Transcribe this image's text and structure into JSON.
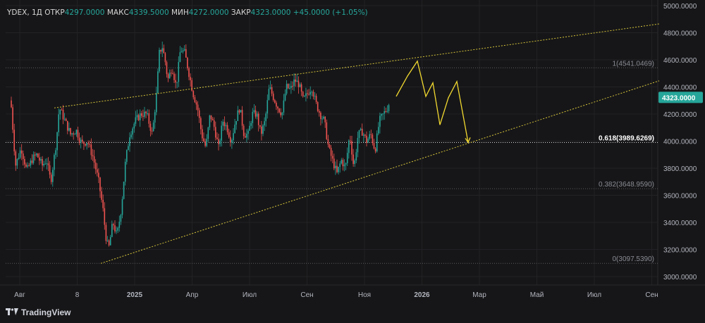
{
  "header": {
    "symbol": "YDEX, 1Д",
    "open_label": "ОТКР",
    "open_value": "4297.0000",
    "high_label": "МАКС",
    "high_value": "4339.5000",
    "low_label": "МИН",
    "low_value": "4272.0000",
    "close_label": "ЗАКР",
    "close_value": "4323.0000",
    "change": "+45.0000 (+1.05%)"
  },
  "brand": "TradingView",
  "colors": {
    "up": "#26a69a",
    "down": "#ef5350",
    "trend": "#d4c23a",
    "forecast": "#f2d930",
    "background": "#161618",
    "grid": "#222226",
    "axis_text": "#b2b5be"
  },
  "chart_data": {
    "type": "candlestick",
    "ylim": [
      3000,
      5000
    ],
    "yticks": [
      "3000.0000",
      "3200.0000",
      "3400.0000",
      "3600.0000",
      "3800.0000",
      "4000.0000",
      "4200.0000",
      "4400.0000",
      "4600.0000",
      "4800.0000",
      "5000.0000"
    ],
    "xticks": [
      "Авг",
      "8",
      "2025",
      "Апр",
      "Июл",
      "Сен",
      "Ноя",
      "2026",
      "Мар",
      "Май",
      "Июл",
      "Сен"
    ],
    "last_price_label": "4323.0000",
    "series_path": [
      [
        0,
        4300
      ],
      [
        4,
        4250
      ],
      [
        10,
        3820
      ],
      [
        18,
        3950
      ],
      [
        26,
        3780
      ],
      [
        34,
        3870
      ],
      [
        40,
        3900
      ],
      [
        48,
        3820
      ],
      [
        54,
        3860
      ],
      [
        60,
        3700
      ],
      [
        68,
        4000
      ],
      [
        72,
        4250
      ],
      [
        80,
        4150
      ],
      [
        88,
        4050
      ],
      [
        96,
        4080
      ],
      [
        104,
        3980
      ],
      [
        112,
        4000
      ],
      [
        120,
        3880
      ],
      [
        128,
        3700
      ],
      [
        134,
        3500
      ],
      [
        138,
        3300
      ],
      [
        142,
        3200
      ],
      [
        148,
        3400
      ],
      [
        154,
        3300
      ],
      [
        160,
        3500
      ],
      [
        166,
        3850
      ],
      [
        172,
        4050
      ],
      [
        180,
        4150
      ],
      [
        188,
        4200
      ],
      [
        196,
        4200
      ],
      [
        204,
        4050
      ],
      [
        210,
        4350
      ],
      [
        214,
        4650
      ],
      [
        218,
        4700
      ],
      [
        222,
        4600
      ],
      [
        226,
        4450
      ],
      [
        232,
        4550
      ],
      [
        238,
        4400
      ],
      [
        244,
        4680
      ],
      [
        250,
        4650
      ],
      [
        256,
        4500
      ],
      [
        262,
        4350
      ],
      [
        268,
        4250
      ],
      [
        274,
        4050
      ],
      [
        280,
        3950
      ],
      [
        286,
        4200
      ],
      [
        292,
        4100
      ],
      [
        298,
        3950
      ],
      [
        304,
        4150
      ],
      [
        310,
        4100
      ],
      [
        316,
        4000
      ],
      [
        322,
        4150
      ],
      [
        328,
        4250
      ],
      [
        334,
        4050
      ],
      [
        340,
        4050
      ],
      [
        346,
        4200
      ],
      [
        352,
        4200
      ],
      [
        358,
        4050
      ],
      [
        364,
        4150
      ],
      [
        370,
        4400
      ],
      [
        376,
        4320
      ],
      [
        382,
        4250
      ],
      [
        388,
        4200
      ],
      [
        394,
        4400
      ],
      [
        400,
        4380
      ],
      [
        406,
        4450
      ],
      [
        412,
        4420
      ],
      [
        418,
        4300
      ],
      [
        424,
        4350
      ],
      [
        430,
        4400
      ],
      [
        436,
        4280
      ],
      [
        442,
        4200
      ],
      [
        448,
        4150
      ],
      [
        454,
        3950
      ],
      [
        460,
        3850
      ],
      [
        466,
        3760
      ],
      [
        472,
        3860
      ],
      [
        478,
        3800
      ],
      [
        484,
        4050
      ],
      [
        490,
        3800
      ],
      [
        496,
        4050
      ],
      [
        502,
        4070
      ],
      [
        508,
        4000
      ],
      [
        514,
        4050
      ],
      [
        520,
        3930
      ],
      [
        526,
        4150
      ],
      [
        532,
        4200
      ],
      [
        538,
        4250
      ],
      [
        544,
        4350
      ],
      [
        548,
        4300
      ],
      [
        553,
        4323
      ]
    ],
    "trendlines": [
      {
        "from": [
          77,
          4245
        ],
        "to": [
          935,
          4865
        ]
      },
      {
        "from": [
          143,
          3097
        ],
        "to": [
          935,
          4445
        ]
      }
    ],
    "forecast_path": [
      [
        562,
        4330
      ],
      [
        578,
        4480
      ],
      [
        592,
        4590
      ],
      [
        604,
        4330
      ],
      [
        614,
        4430
      ],
      [
        624,
        4120
      ],
      [
        636,
        4320
      ],
      [
        648,
        4440
      ],
      [
        664,
        3990
      ]
    ],
    "fibonacci": [
      {
        "label": "1(4541.0469)",
        "value": 4541.0469,
        "strong": false
      },
      {
        "label": "0.618(3989.6269)",
        "value": 3989.6269,
        "strong": true
      },
      {
        "label": "0.382(3648.9590)",
        "value": 3648.959,
        "strong": false
      },
      {
        "label": "0(3097.5390)",
        "value": 3097.539,
        "strong": false
      }
    ]
  }
}
